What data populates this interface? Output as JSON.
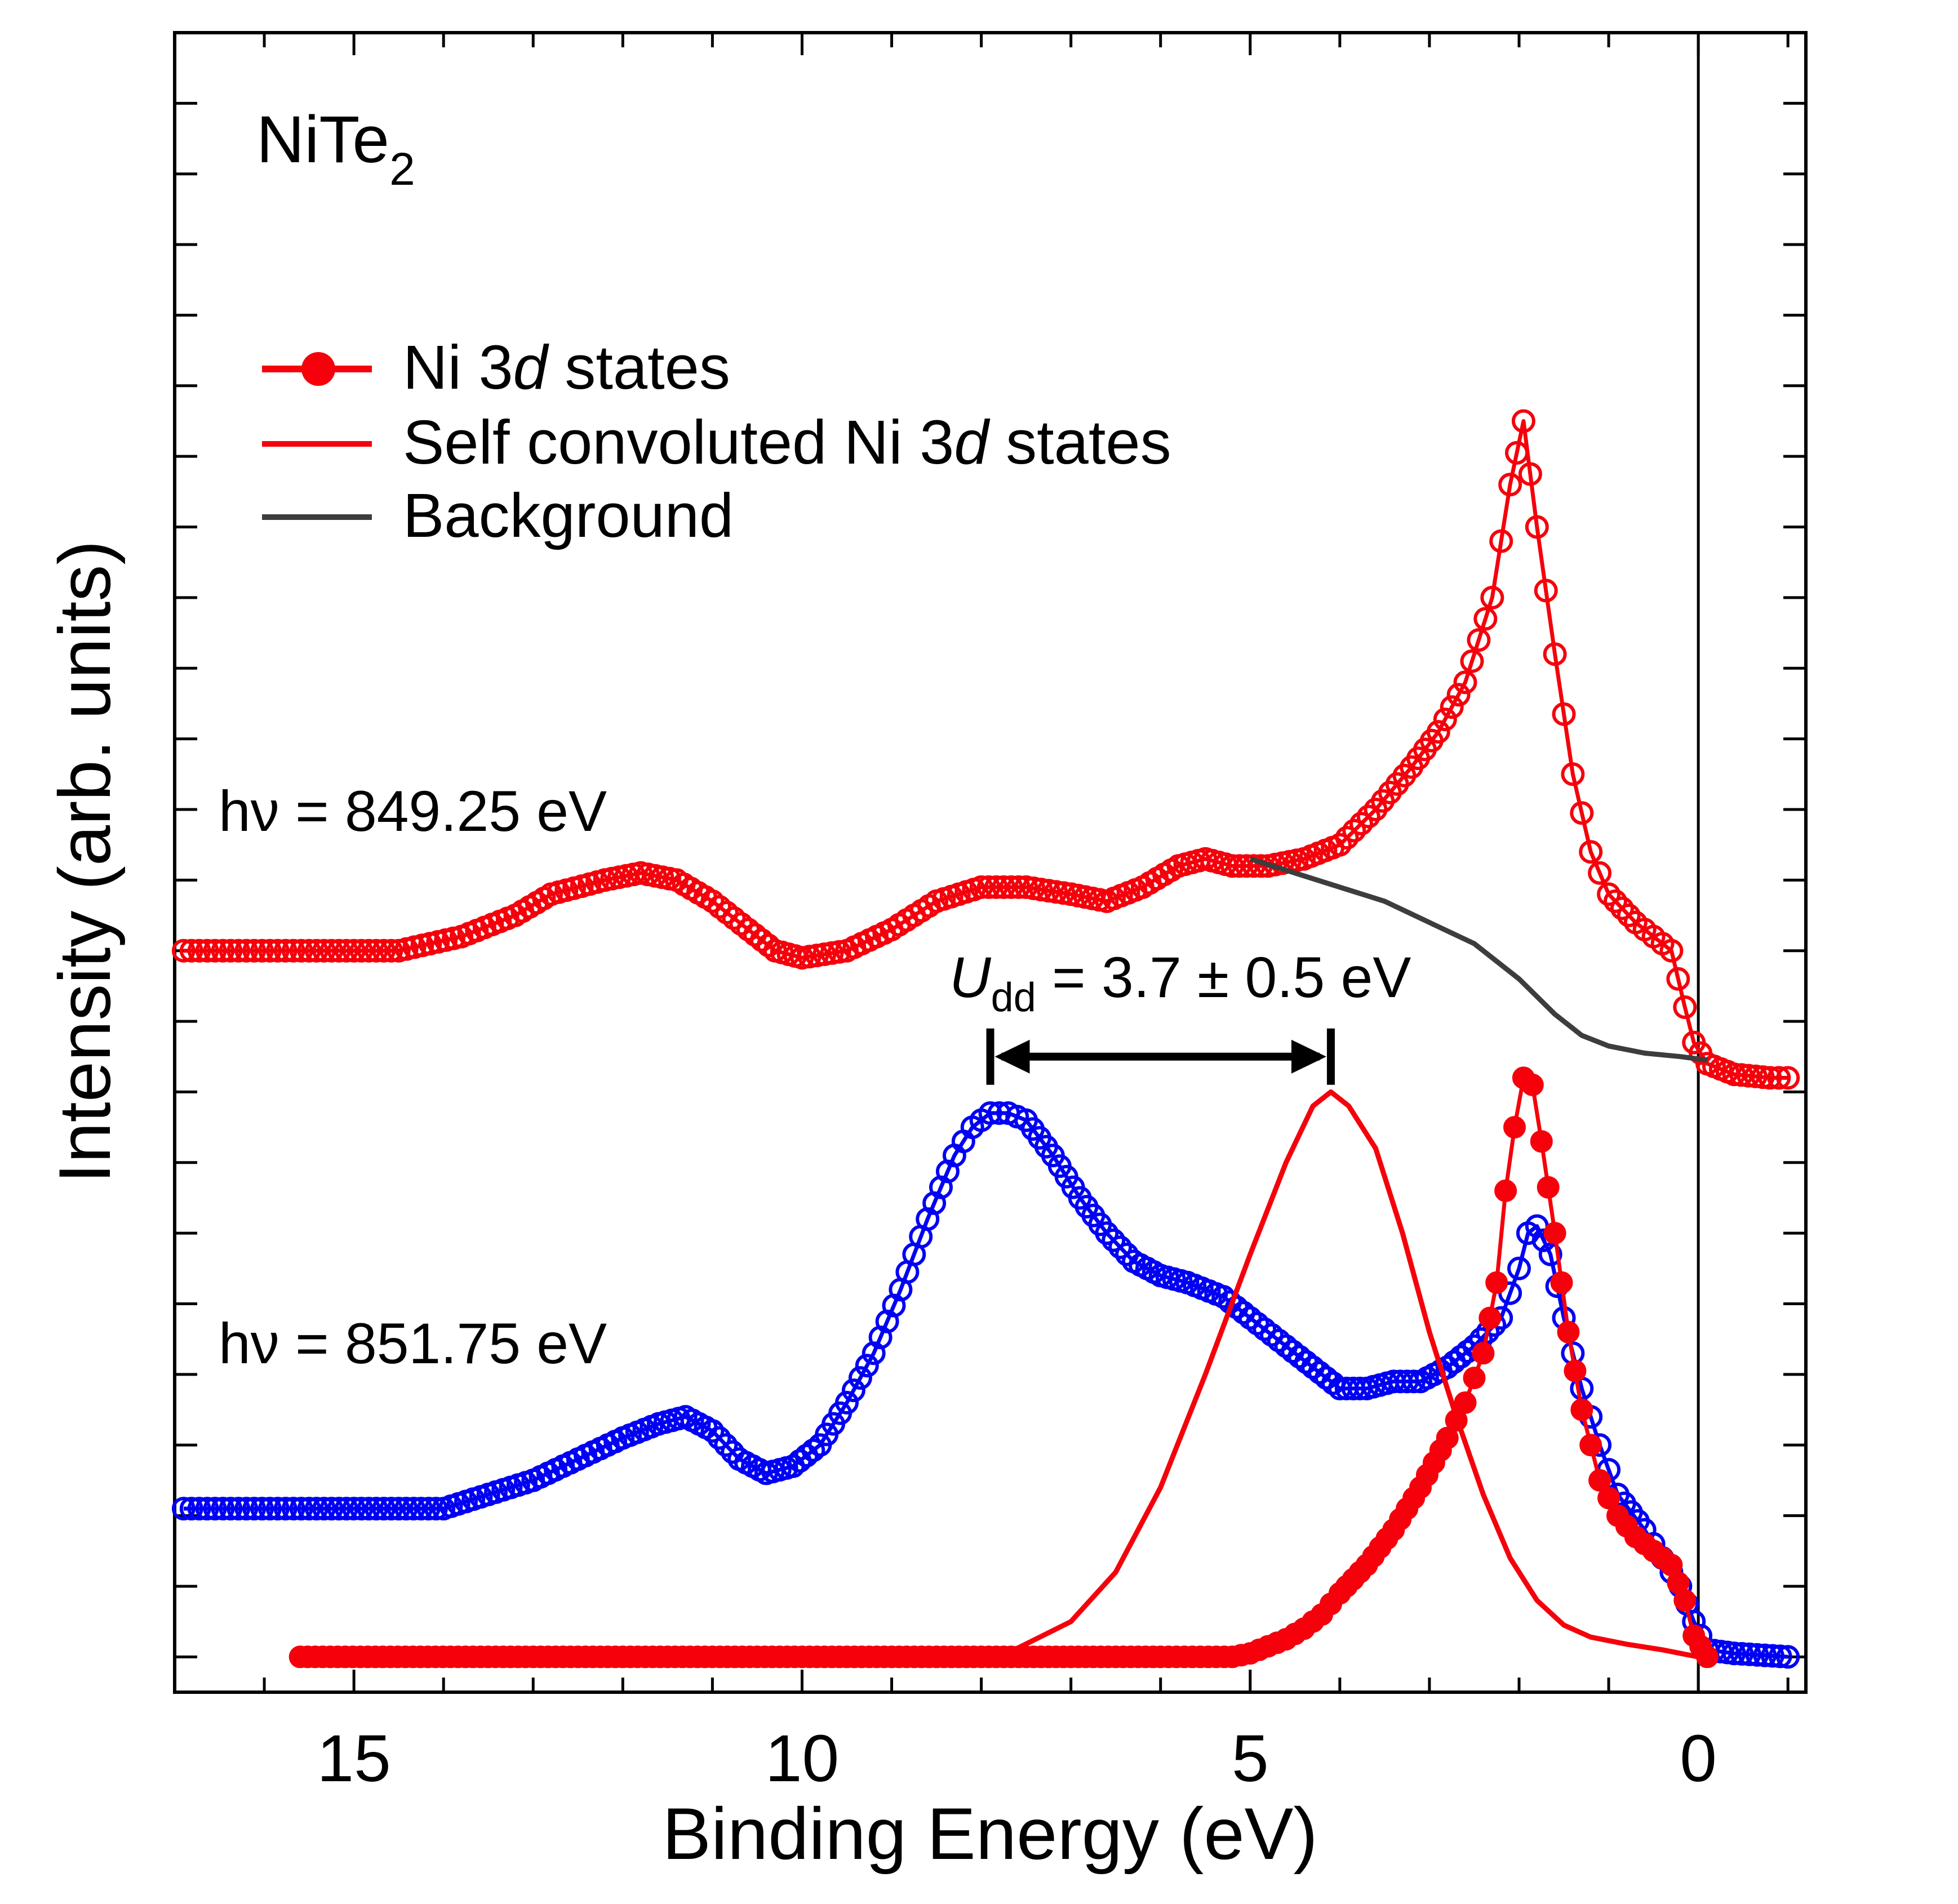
{
  "chart_data": {
    "type": "line",
    "title": {
      "main": "NiTe",
      "sub": "2"
    },
    "xlabel": "Binding Energy (eV)",
    "ylabel": "Intensity (arb. units)",
    "xlim": [
      17.0,
      -1.2
    ],
    "ylim": [
      -0.05,
      2.3
    ],
    "x_reversed": true,
    "x_ticks": [
      {
        "value": 15,
        "label": "15"
      },
      {
        "value": 10,
        "label": "10"
      },
      {
        "value": 5,
        "label": "5"
      },
      {
        "value": 0,
        "label": "0"
      }
    ],
    "y_tick_count": 23,
    "fermi_level_line": 0,
    "grid": false,
    "legend": {
      "position": "top-left",
      "entries": [
        {
          "label_pre": "Ni 3",
          "label_italic": "d",
          "label_post": " states",
          "style": "line-filled-marker",
          "color": "#f5000b"
        },
        {
          "label_pre": "Self convoluted Ni 3",
          "label_italic": "d",
          "label_post": " states",
          "style": "line",
          "color": "#f5000b"
        },
        {
          "label_pre": "Background",
          "label_italic": "",
          "label_post": "",
          "style": "line",
          "color": "#3d3d3d"
        }
      ]
    },
    "annotations": {
      "hv1": "hν = 849.25 eV",
      "hv2": "hν = 851.75 eV",
      "udd_symbol": "U",
      "udd_sub": "dd",
      "udd_value": " = 3.7 ± 0.5 eV",
      "udd_arrow": {
        "from": 7.9,
        "to": 4.1,
        "y": 0.85
      }
    },
    "series": [
      {
        "name": "hν = 849.25 eV spectrum",
        "style": "open-circles-line",
        "color": "#f5000b",
        "points": [
          [
            16.9,
            1.0
          ],
          [
            15.5,
            1.0
          ],
          [
            14.5,
            1.0
          ],
          [
            13.8,
            1.02
          ],
          [
            13.2,
            1.05
          ],
          [
            12.8,
            1.08
          ],
          [
            12.2,
            1.1
          ],
          [
            11.8,
            1.11
          ],
          [
            11.4,
            1.1
          ],
          [
            11.0,
            1.07
          ],
          [
            10.6,
            1.03
          ],
          [
            10.3,
            1.0
          ],
          [
            10.0,
            0.99
          ],
          [
            9.5,
            1.0
          ],
          [
            9.0,
            1.03
          ],
          [
            8.5,
            1.07
          ],
          [
            8.0,
            1.09
          ],
          [
            7.5,
            1.09
          ],
          [
            7.0,
            1.08
          ],
          [
            6.6,
            1.07
          ],
          [
            6.2,
            1.09
          ],
          [
            5.8,
            1.12
          ],
          [
            5.5,
            1.13
          ],
          [
            5.2,
            1.12
          ],
          [
            4.8,
            1.12
          ],
          [
            4.4,
            1.13
          ],
          [
            4.0,
            1.15
          ],
          [
            3.6,
            1.2
          ],
          [
            3.2,
            1.26
          ],
          [
            2.9,
            1.31
          ],
          [
            2.6,
            1.38
          ],
          [
            2.3,
            1.5
          ],
          [
            2.1,
            1.66
          ],
          [
            1.95,
            1.75
          ],
          [
            1.8,
            1.6
          ],
          [
            1.6,
            1.42
          ],
          [
            1.4,
            1.25
          ],
          [
            1.2,
            1.14
          ],
          [
            1.0,
            1.08
          ],
          [
            0.7,
            1.04
          ],
          [
            0.5,
            1.02
          ],
          [
            0.3,
            1.0
          ],
          [
            0.15,
            0.92
          ],
          [
            0.05,
            0.87
          ],
          [
            -0.1,
            0.84
          ],
          [
            -0.4,
            0.825
          ],
          [
            -0.8,
            0.82
          ],
          [
            -1.0,
            0.82
          ]
        ]
      },
      {
        "name": "Background",
        "style": "line",
        "color": "#3d3d3d",
        "points": [
          [
            5.0,
            1.13
          ],
          [
            4.5,
            1.11
          ],
          [
            4.0,
            1.09
          ],
          [
            3.5,
            1.07
          ],
          [
            3.0,
            1.04
          ],
          [
            2.5,
            1.01
          ],
          [
            2.0,
            0.96
          ],
          [
            1.6,
            0.91
          ],
          [
            1.3,
            0.88
          ],
          [
            1.0,
            0.865
          ],
          [
            0.6,
            0.855
          ],
          [
            0.2,
            0.85
          ],
          [
            -0.1,
            0.845
          ]
        ]
      },
      {
        "name": "hν = 851.75 eV spectrum",
        "style": "open-circles-line",
        "color": "#0000f5",
        "points": [
          [
            16.9,
            0.21
          ],
          [
            15.5,
            0.21
          ],
          [
            14.5,
            0.21
          ],
          [
            14.0,
            0.21
          ],
          [
            13.5,
            0.23
          ],
          [
            13.0,
            0.25
          ],
          [
            12.5,
            0.28
          ],
          [
            12.0,
            0.31
          ],
          [
            11.6,
            0.33
          ],
          [
            11.3,
            0.34
          ],
          [
            11.0,
            0.32
          ],
          [
            10.7,
            0.28
          ],
          [
            10.4,
            0.26
          ],
          [
            10.1,
            0.27
          ],
          [
            9.8,
            0.3
          ],
          [
            9.5,
            0.36
          ],
          [
            9.2,
            0.43
          ],
          [
            8.9,
            0.52
          ],
          [
            8.6,
            0.62
          ],
          [
            8.3,
            0.71
          ],
          [
            8.1,
            0.75
          ],
          [
            7.9,
            0.77
          ],
          [
            7.7,
            0.77
          ],
          [
            7.5,
            0.76
          ],
          [
            7.2,
            0.71
          ],
          [
            6.9,
            0.65
          ],
          [
            6.6,
            0.6
          ],
          [
            6.3,
            0.56
          ],
          [
            6.0,
            0.54
          ],
          [
            5.7,
            0.53
          ],
          [
            5.3,
            0.51
          ],
          [
            5.0,
            0.48
          ],
          [
            4.6,
            0.44
          ],
          [
            4.3,
            0.41
          ],
          [
            4.0,
            0.38
          ],
          [
            3.7,
            0.38
          ],
          [
            3.4,
            0.39
          ],
          [
            3.1,
            0.39
          ],
          [
            2.8,
            0.41
          ],
          [
            2.5,
            0.44
          ],
          [
            2.2,
            0.48
          ],
          [
            2.0,
            0.55
          ],
          [
            1.9,
            0.6
          ],
          [
            1.8,
            0.61
          ],
          [
            1.65,
            0.57
          ],
          [
            1.5,
            0.48
          ],
          [
            1.3,
            0.38
          ],
          [
            1.1,
            0.3
          ],
          [
            0.9,
            0.23
          ],
          [
            0.6,
            0.18
          ],
          [
            0.4,
            0.14
          ],
          [
            0.2,
            0.1
          ],
          [
            0.05,
            0.05
          ],
          [
            -0.1,
            0.01
          ],
          [
            -0.4,
            0.005
          ],
          [
            -1.0,
            0.0
          ]
        ]
      },
      {
        "name": "Ni 3d states",
        "style": "filled-circles-line",
        "color": "#f5000b",
        "points": [
          [
            15.6,
            0.0
          ],
          [
            13.0,
            0.0
          ],
          [
            11.0,
            0.0
          ],
          [
            9.0,
            0.0
          ],
          [
            7.0,
            0.0
          ],
          [
            6.0,
            0.0
          ],
          [
            5.2,
            0.0
          ],
          [
            5.0,
            0.005
          ],
          [
            4.8,
            0.015
          ],
          [
            4.6,
            0.025
          ],
          [
            4.4,
            0.04
          ],
          [
            4.2,
            0.06
          ],
          [
            4.0,
            0.09
          ],
          [
            3.7,
            0.13
          ],
          [
            3.4,
            0.18
          ],
          [
            3.1,
            0.24
          ],
          [
            2.8,
            0.31
          ],
          [
            2.6,
            0.36
          ],
          [
            2.4,
            0.43
          ],
          [
            2.25,
            0.53
          ],
          [
            2.15,
            0.66
          ],
          [
            2.05,
            0.75
          ],
          [
            1.95,
            0.82
          ],
          [
            1.85,
            0.81
          ],
          [
            1.75,
            0.73
          ],
          [
            1.6,
            0.6
          ],
          [
            1.45,
            0.46
          ],
          [
            1.3,
            0.35
          ],
          [
            1.1,
            0.25
          ],
          [
            0.9,
            0.2
          ],
          [
            0.7,
            0.17
          ],
          [
            0.5,
            0.15
          ],
          [
            0.3,
            0.13
          ],
          [
            0.15,
            0.08
          ],
          [
            0.05,
            0.03
          ],
          [
            -0.1,
            0.0
          ]
        ]
      },
      {
        "name": "Self convoluted Ni 3d states",
        "style": "line",
        "color": "#f5000b",
        "points": [
          [
            15.6,
            0.0
          ],
          [
            10.0,
            0.0
          ],
          [
            8.2,
            0.0
          ],
          [
            7.6,
            0.012
          ],
          [
            7.0,
            0.05
          ],
          [
            6.5,
            0.12
          ],
          [
            6.0,
            0.24
          ],
          [
            5.5,
            0.4
          ],
          [
            5.0,
            0.57
          ],
          [
            4.6,
            0.7
          ],
          [
            4.3,
            0.78
          ],
          [
            4.1,
            0.8
          ],
          [
            3.9,
            0.78
          ],
          [
            3.6,
            0.72
          ],
          [
            3.3,
            0.6
          ],
          [
            3.0,
            0.46
          ],
          [
            2.7,
            0.34
          ],
          [
            2.4,
            0.23
          ],
          [
            2.1,
            0.14
          ],
          [
            1.8,
            0.08
          ],
          [
            1.5,
            0.045
          ],
          [
            1.2,
            0.028
          ],
          [
            0.8,
            0.018
          ],
          [
            0.4,
            0.01
          ],
          [
            0.0,
            0.0
          ]
        ]
      }
    ]
  }
}
